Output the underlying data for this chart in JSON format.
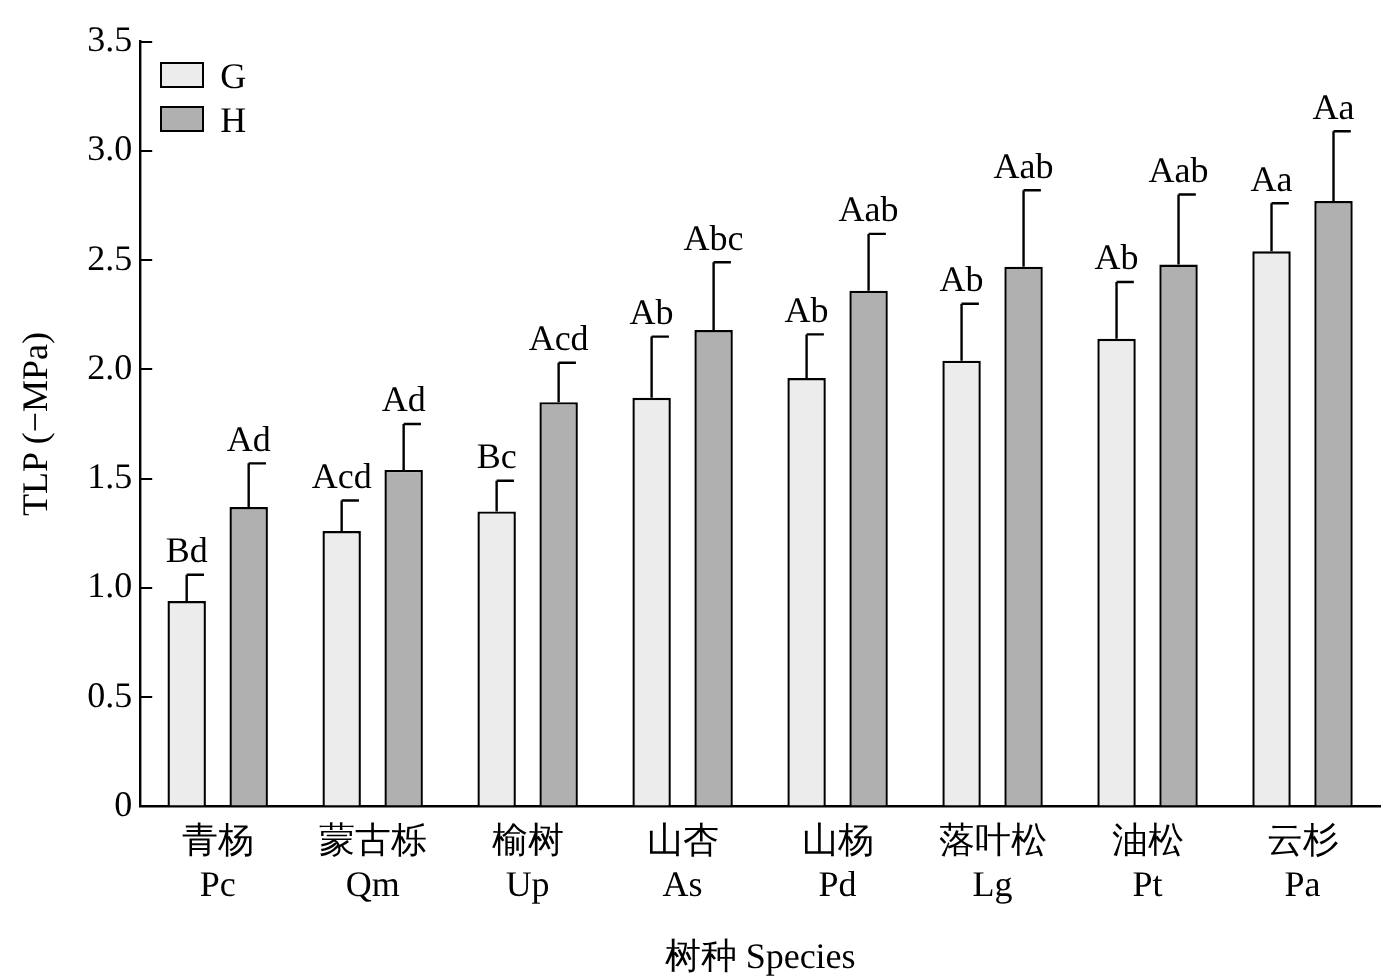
{
  "chart_data": {
    "type": "bar",
    "xlabel": "树种 Species",
    "ylabel": "TLP (−MPa)",
    "categories": [
      "青杨\nPc",
      "蒙古栎\nQm",
      "榆树\nUp",
      "山杏\nAs",
      "山杨\nPd",
      "落叶松\nLg",
      "油松\nPt",
      "云杉\nPa"
    ],
    "series": [
      {
        "name": "G",
        "color": "#ececec",
        "values": [
          0.94,
          1.26,
          1.35,
          1.87,
          1.96,
          2.04,
          2.14,
          2.54
        ],
        "errors": [
          [
            0.94,
            1.06
          ],
          [
            1.26,
            1.4
          ],
          [
            1.35,
            1.49
          ],
          [
            1.87,
            2.15
          ],
          [
            1.96,
            2.16
          ],
          [
            2.04,
            2.3
          ],
          [
            2.14,
            2.4
          ],
          [
            2.54,
            2.76
          ]
        ],
        "value_labels": [
          "Bd",
          "Acd",
          "Bc",
          "Ab",
          "Ab",
          "Ab",
          "Ab",
          "Aa"
        ]
      },
      {
        "name": "H",
        "color": "#b0b0b0",
        "values": [
          1.37,
          1.54,
          1.85,
          2.18,
          2.36,
          2.47,
          2.48,
          2.77
        ],
        "errors": [
          [
            1.37,
            1.57
          ],
          [
            1.54,
            1.75
          ],
          [
            1.85,
            2.03
          ],
          [
            2.18,
            2.49
          ],
          [
            2.36,
            2.62
          ],
          [
            2.47,
            2.82
          ],
          [
            2.48,
            2.8
          ],
          [
            2.77,
            3.09
          ]
        ],
        "value_labels": [
          "Ad",
          "Ad",
          "Acd",
          "Abc",
          "Aab",
          "Aab",
          "Aab",
          "Aa"
        ]
      }
    ],
    "ylim": [
      0,
      3.5
    ],
    "yticks": [
      0,
      {
        "value": 0.5,
        "label": "0.5"
      },
      {
        "value": 1,
        "label": "1.0"
      },
      {
        "value": 1.5,
        "label": "1.5"
      },
      {
        "value": 2,
        "label": "2.0"
      },
      {
        "value": 2.5,
        "label": "2.5"
      },
      {
        "value": 3,
        "label": "3.0"
      },
      {
        "value": 3.5,
        "label": "3.5"
      }
    ],
    "grid": false,
    "legend": "top left"
  }
}
